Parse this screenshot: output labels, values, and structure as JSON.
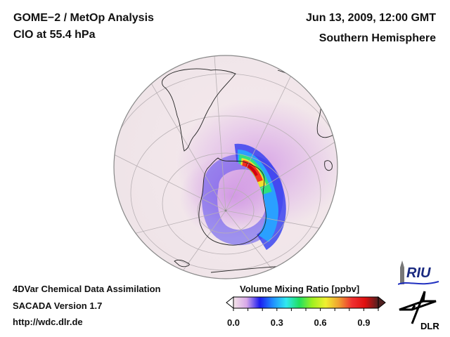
{
  "header": {
    "title": "GOME−2 / MetOp Analysis",
    "species": "ClO at 55.4 hPa",
    "datetime": "Jun 13, 2009, 12:00 GMT",
    "region": "Southern Hemisphere"
  },
  "footer": {
    "line1": "4DVar Chemical Data Assimilation",
    "line2": "SACADA Version 1.7",
    "line3": "http://wdc.dlr.de"
  },
  "colorbar": {
    "label": "Volume Mixing Ratio [ppbv]",
    "ticks": [
      "0.0",
      "0.3",
      "0.6",
      "0.9"
    ],
    "tick_values": [
      0.0,
      0.3,
      0.6,
      0.9
    ],
    "range": [
      0.0,
      1.0
    ],
    "extend": "both",
    "colors": [
      "#f4e4e8",
      "#d8a8e8",
      "#1b1bf0",
      "#2090ff",
      "#30e8f0",
      "#20e060",
      "#a0f020",
      "#f0f030",
      "#f0a030",
      "#f03030",
      "#e01010",
      "#502020"
    ]
  },
  "logos": {
    "riu": "RIU",
    "dlr": "DLR"
  },
  "map": {
    "projection": "orthographic",
    "hemisphere": "south",
    "ocean_color": "#efe6e8",
    "features": [
      "coastlines",
      "graticule",
      "ClO field"
    ]
  }
}
